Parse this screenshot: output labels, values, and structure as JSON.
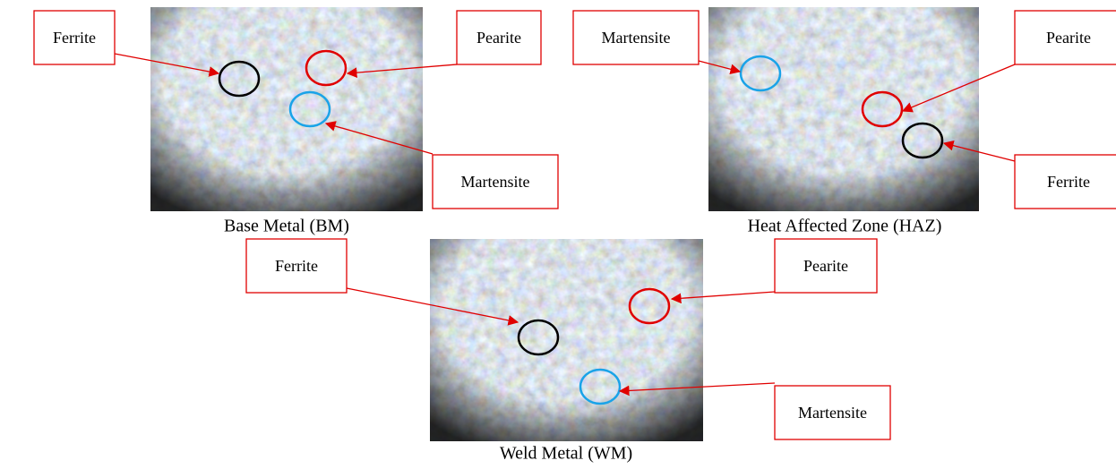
{
  "panels": [
    {
      "caption": "Base Metal (BM)",
      "labels": [
        "Ferrite",
        "Pearite",
        "Martensite"
      ]
    },
    {
      "caption": "Heat Affected Zone (HAZ)",
      "labels": [
        "Martensite",
        "Pearite",
        "Ferrite"
      ]
    },
    {
      "caption": "Weld Metal (WM)",
      "labels": [
        "Ferrite",
        "Pearite",
        "Martensite"
      ]
    }
  ]
}
